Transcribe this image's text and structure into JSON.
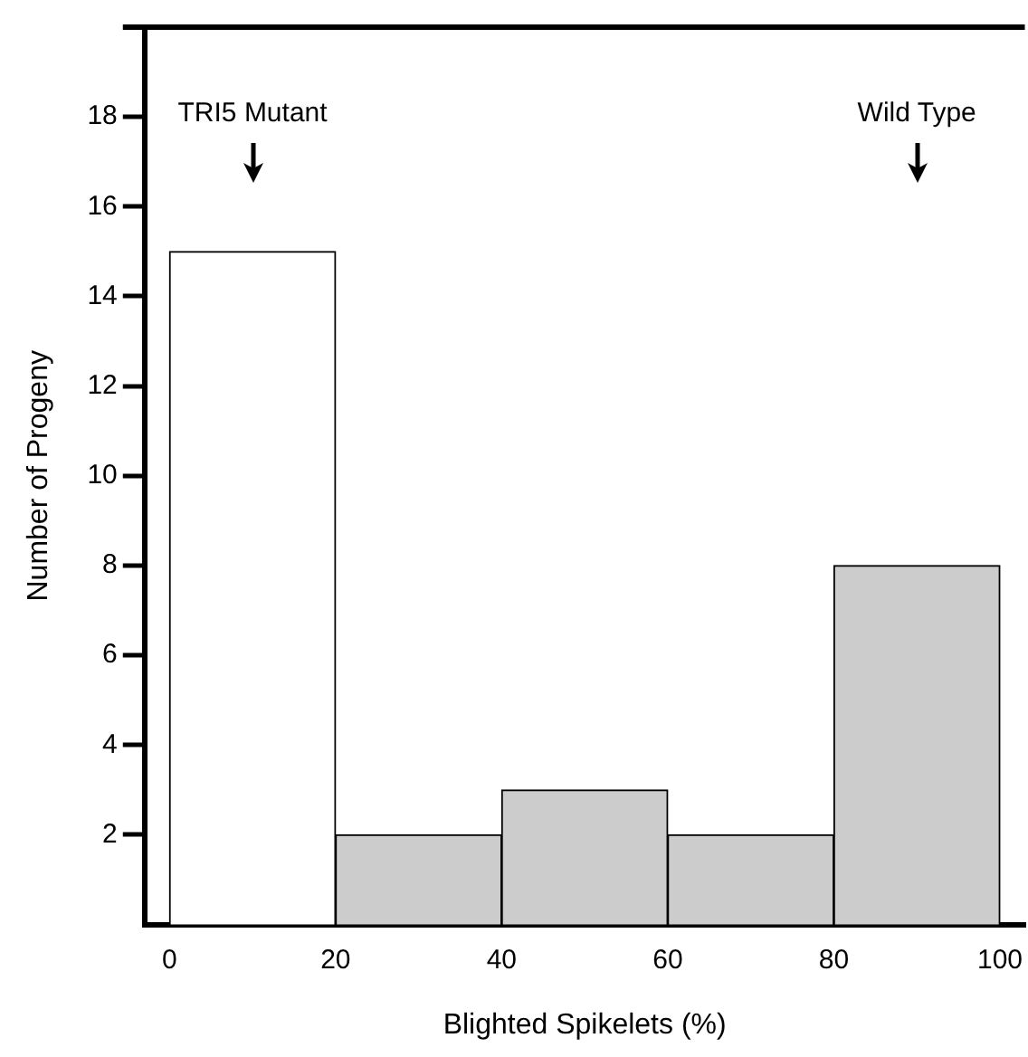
{
  "chart_data": {
    "type": "histogram",
    "xlabel": "Blighted Spikelets (%)",
    "ylabel": "Number of Progeny",
    "bins": [
      0,
      20,
      40,
      60,
      80,
      100
    ],
    "values": [
      15,
      2,
      3,
      2,
      8
    ],
    "colors": [
      "#ffffff",
      "#cccccc",
      "#cccccc",
      "#cccccc",
      "#cccccc"
    ],
    "xlim": [
      -3,
      103
    ],
    "xticks": [
      0,
      20,
      40,
      60,
      80,
      100
    ],
    "ylim": [
      0,
      20
    ],
    "yticks": [
      2,
      4,
      6,
      8,
      10,
      12,
      14,
      16,
      18
    ],
    "annotations": [
      "TRI5 Mutant",
      "Wild Type"
    ],
    "grid": false,
    "legend": false
  }
}
